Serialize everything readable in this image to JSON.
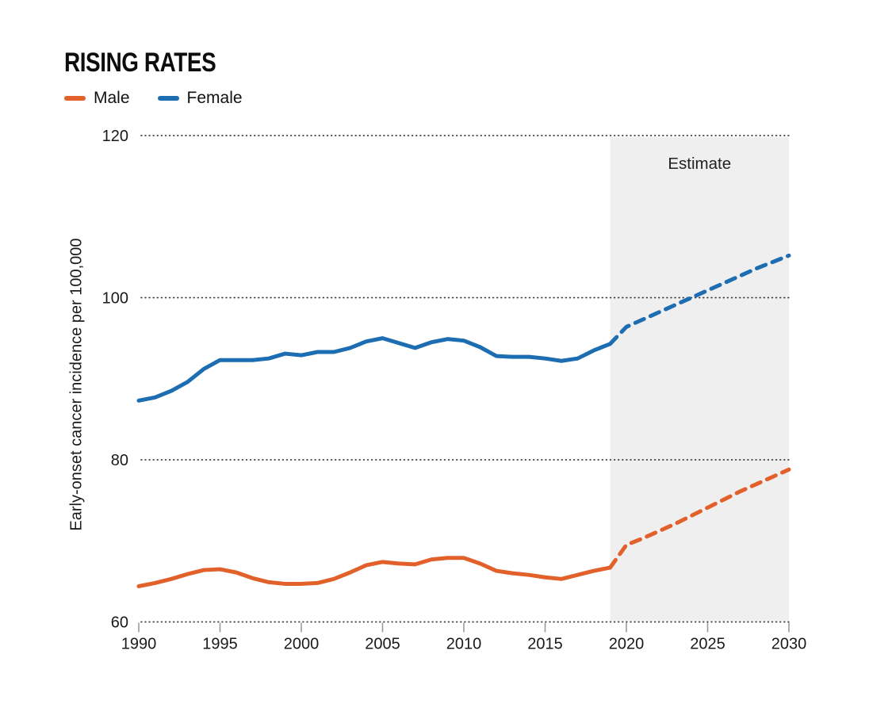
{
  "title": "RISING RATES",
  "legend": [
    {
      "label": "Male",
      "color": "#e2612b"
    },
    {
      "label": "Female",
      "color": "#1c6db2"
    }
  ],
  "estimate_label": "Estimate",
  "ylabel": "Early-onset cancer incidence per 100,000",
  "chart_data": {
    "type": "line",
    "title": "RISING RATES",
    "xlabel": "",
    "ylabel": "Early-onset cancer incidence per 100,000",
    "xlim": [
      1990,
      2030
    ],
    "ylim": [
      60,
      120
    ],
    "xticks": [
      1990,
      1995,
      2000,
      2005,
      2010,
      2015,
      2020,
      2025,
      2030
    ],
    "yticks": [
      60,
      80,
      100,
      120
    ],
    "grid": "dotted-horizontal",
    "legend_position": "top-left",
    "estimate_region": {
      "start": 2019,
      "end": 2030,
      "label": "Estimate",
      "fill": "#efefef"
    },
    "series": [
      {
        "name": "Male",
        "color": "#e2612b",
        "years_start": 1990,
        "values": [
          64.4,
          64.8,
          65.3,
          65.9,
          66.4,
          66.5,
          66.1,
          65.4,
          64.9,
          64.7,
          64.7,
          64.8,
          65.3,
          66.1,
          67.0,
          67.4,
          67.2,
          67.1,
          67.7,
          67.9,
          67.9,
          67.2,
          66.3,
          66.0,
          65.8,
          65.5,
          65.3,
          65.8,
          66.3,
          66.7
        ],
        "estimate_start": 2019,
        "estimate_values": [
          66.7,
          69.5,
          70.3,
          71.2,
          72.1,
          73.1,
          74.1,
          75.1,
          76.1,
          77.0,
          77.9,
          78.8
        ]
      },
      {
        "name": "Female",
        "color": "#1c6db2",
        "years_start": 1990,
        "values": [
          87.3,
          87.7,
          88.5,
          89.6,
          91.2,
          92.3,
          92.3,
          92.3,
          92.5,
          93.1,
          92.9,
          93.3,
          93.3,
          93.8,
          94.6,
          95.0,
          94.4,
          93.8,
          94.5,
          94.9,
          94.7,
          93.9,
          92.8,
          92.7,
          92.7,
          92.5,
          92.2,
          92.5,
          93.5,
          94.3
        ],
        "estimate_start": 2019,
        "estimate_values": [
          94.3,
          96.4,
          97.3,
          98.2,
          99.1,
          100.0,
          100.9,
          101.8,
          102.7,
          103.6,
          104.4,
          105.2
        ]
      }
    ]
  }
}
